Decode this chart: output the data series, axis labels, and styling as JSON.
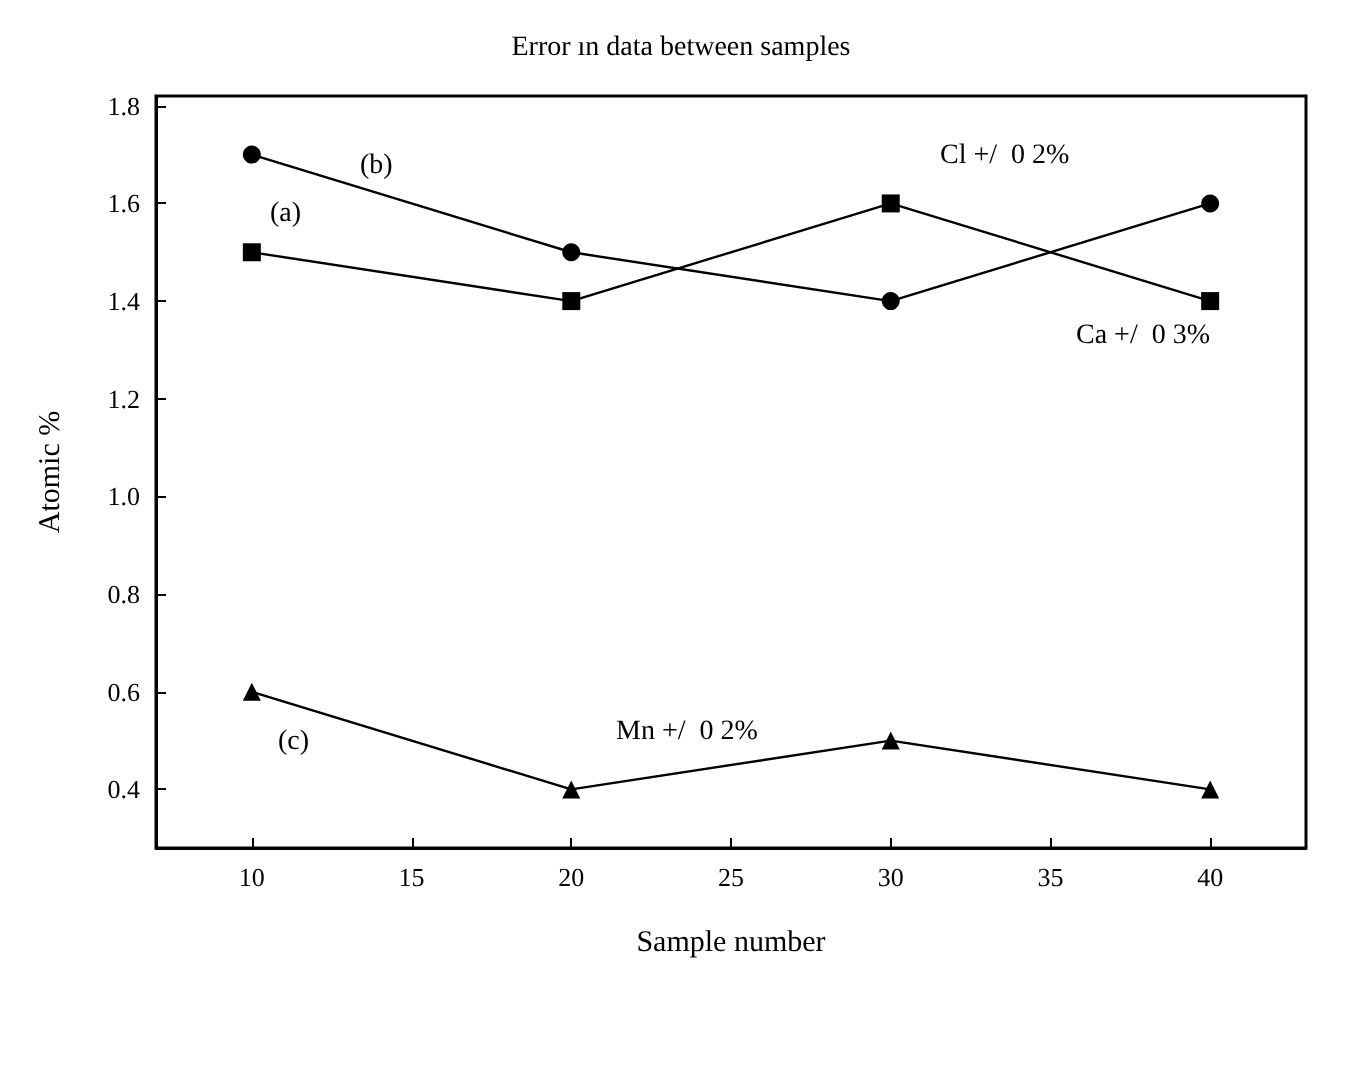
{
  "chart_data": {
    "type": "line",
    "title": "Error ın data between samples",
    "xlabel": "Sample number",
    "ylabel": "Atomic %",
    "x": [
      10,
      20,
      30,
      40
    ],
    "series": [
      {
        "color": "#000000",
        "marker": "circle",
        "values": [
          1.7,
          1.5,
          1.4,
          1.6
        ]
      },
      {
        "color": "#000000",
        "marker": "square",
        "values": [
          1.5,
          1.4,
          1.6,
          1.4
        ]
      },
      {
        "color": "#000000",
        "marker": "triangle",
        "values": [
          0.6,
          0.4,
          0.5,
          0.4
        ]
      }
    ],
    "xlim": [
      7,
      43
    ],
    "ylim": [
      0.28,
      1.82
    ],
    "xticks": [
      10,
      15,
      20,
      25,
      30,
      35,
      40
    ],
    "yticks": [
      0.4,
      0.6,
      0.8,
      {
        "value": 1,
        "label": "1.0"
      },
      1.2,
      1.4,
      1.6,
      1.8
    ],
    "annotations": [
      "(a)",
      "(b)",
      "(c)",
      "Cl +/  0 2%",
      "Ca +/  0 3%",
      "Mn +/  0 2%"
    ],
    "grid": false,
    "line_style": "solid"
  }
}
